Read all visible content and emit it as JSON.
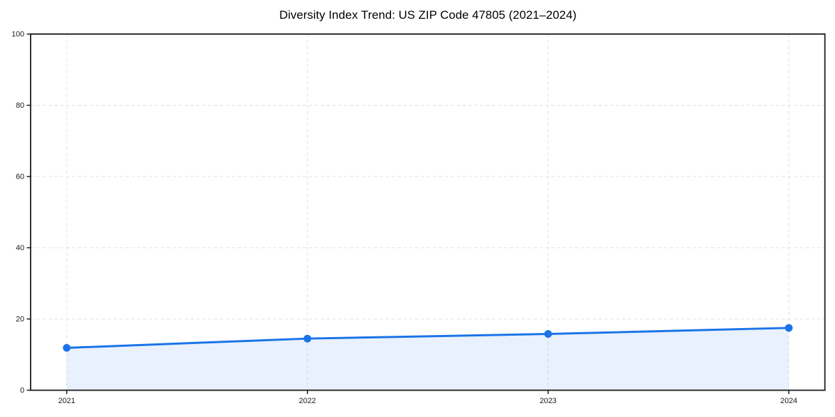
{
  "chart_data": {
    "type": "area",
    "title": "Diversity Index Trend: US ZIP Code 47805 (2021–2024)",
    "xlabel": "",
    "ylabel": "",
    "x": [
      2021,
      2022,
      2023,
      2024
    ],
    "series": [
      {
        "name": "Diversity Index",
        "values": [
          11.9,
          14.5,
          15.8,
          17.5
        ]
      }
    ],
    "xticks": [
      2021,
      2022,
      2023,
      2024
    ],
    "yticks": [
      0,
      20,
      40,
      60,
      80,
      100
    ],
    "xlim": [
      2020.85,
      2024.15
    ],
    "ylim": [
      0,
      100
    ],
    "grid": true,
    "grid_style": "dashed",
    "legend": false,
    "colors": {
      "line": "#1a73e8",
      "marker": "#1a73e8",
      "fill": "rgba(26,115,232,0.10)",
      "grid": "#e2e2e2",
      "spine": "#1a1a1a",
      "tick_text": "#1a1a1a",
      "background": "#ffffff"
    }
  }
}
